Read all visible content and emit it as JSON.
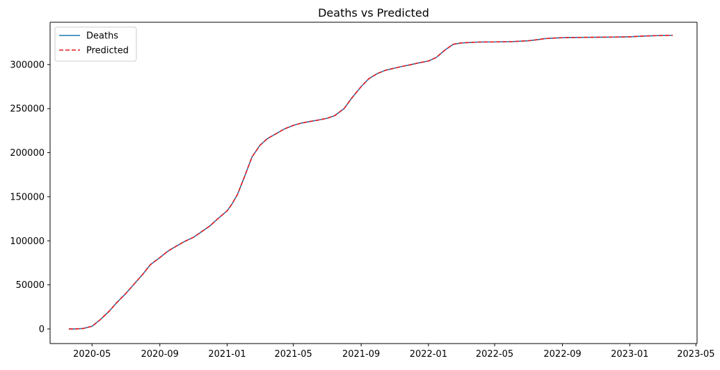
{
  "chart_data": {
    "type": "line",
    "title": "Deaths vs Predicted",
    "xlabel": "",
    "ylabel": "",
    "xlim": [
      "2020-02-15",
      "2023-05-03"
    ],
    "ylim": [
      -16600,
      348000
    ],
    "x_ticks": [
      "2020-05",
      "2020-09",
      "2021-01",
      "2021-05",
      "2021-09",
      "2022-01",
      "2022-05",
      "2022-09",
      "2023-01",
      "2023-05"
    ],
    "y_ticks": [
      0,
      50000,
      100000,
      150000,
      200000,
      250000,
      300000
    ],
    "y_tick_labels": [
      "0",
      "50000",
      "100000",
      "150000",
      "200000",
      "250000",
      "300000"
    ],
    "grid": false,
    "legend_position": "upper left",
    "x": [
      "2020-03-20",
      "2020-04-01",
      "2020-04-15",
      "2020-05-01",
      "2020-05-15",
      "2020-06-01",
      "2020-06-15",
      "2020-07-01",
      "2020-07-15",
      "2020-08-01",
      "2020-08-15",
      "2020-09-01",
      "2020-09-15",
      "2020-10-01",
      "2020-10-15",
      "2020-11-01",
      "2020-11-15",
      "2020-12-01",
      "2020-12-15",
      "2021-01-01",
      "2021-01-10",
      "2021-01-20",
      "2021-02-01",
      "2021-02-15",
      "2021-03-01",
      "2021-03-15",
      "2021-04-01",
      "2021-04-15",
      "2021-05-01",
      "2021-05-15",
      "2021-06-01",
      "2021-06-15",
      "2021-07-01",
      "2021-07-15",
      "2021-08-01",
      "2021-08-15",
      "2021-09-01",
      "2021-09-15",
      "2021-10-01",
      "2021-10-15",
      "2021-11-01",
      "2021-11-15",
      "2021-12-01",
      "2021-12-15",
      "2022-01-01",
      "2022-01-15",
      "2022-02-01",
      "2022-02-15",
      "2022-03-01",
      "2022-03-15",
      "2022-04-01",
      "2022-05-01",
      "2022-06-01",
      "2022-07-01",
      "2022-07-15",
      "2022-08-01",
      "2022-08-15",
      "2022-09-01",
      "2022-10-01",
      "2022-11-01",
      "2022-12-01",
      "2023-01-01",
      "2023-01-15",
      "2023-02-01",
      "2023-03-01",
      "2023-03-20"
    ],
    "series": [
      {
        "name": "Deaths",
        "color": "#1f77b4",
        "linestyle": "solid",
        "values": [
          0,
          0,
          500,
          3000,
          10000,
          20000,
          30000,
          40000,
          50000,
          62000,
          73000,
          81000,
          88000,
          94000,
          99000,
          104000,
          110000,
          117000,
          125000,
          134000,
          142000,
          153000,
          172000,
          195000,
          208000,
          216000,
          222000,
          227000,
          231000,
          233500,
          235500,
          237000,
          239000,
          242000,
          250000,
          262000,
          275000,
          284000,
          290000,
          293500,
          296000,
          298000,
          300000,
          302000,
          304000,
          308000,
          317000,
          323000,
          324500,
          325000,
          325500,
          325700,
          326000,
          327000,
          328000,
          329500,
          330000,
          330500,
          330800,
          331000,
          331200,
          331500,
          332000,
          332500,
          333000,
          333200
        ]
      },
      {
        "name": "Predicted",
        "color": "#e41a1c",
        "linestyle": "dashed",
        "values": [
          0,
          0,
          500,
          3000,
          10000,
          20000,
          30000,
          40000,
          50000,
          62000,
          73000,
          81000,
          88000,
          94000,
          99000,
          104000,
          110000,
          117000,
          125000,
          134000,
          142000,
          153000,
          172000,
          195000,
          208000,
          216000,
          222000,
          227000,
          231000,
          233500,
          235500,
          237000,
          239000,
          242000,
          250000,
          262000,
          275000,
          284000,
          290000,
          293500,
          296000,
          298000,
          300000,
          302000,
          304000,
          308000,
          317000,
          323000,
          324500,
          325000,
          325500,
          325700,
          326000,
          327000,
          328000,
          329500,
          330000,
          330500,
          330800,
          331000,
          331200,
          331500,
          332000,
          332500,
          333000,
          333200
        ]
      }
    ]
  }
}
